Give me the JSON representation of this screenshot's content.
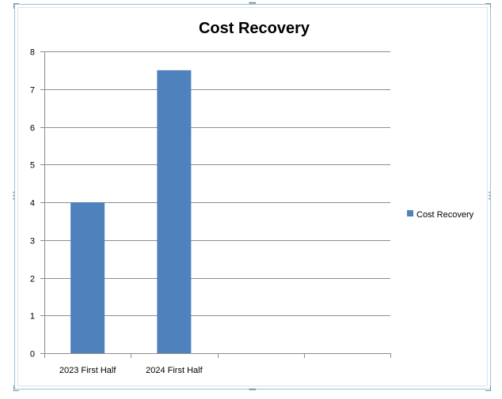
{
  "chart_data": {
    "type": "bar",
    "title": "Cost Recovery",
    "categories": [
      "2023 First Half",
      "2024 First Half",
      "",
      ""
    ],
    "series": [
      {
        "name": "Cost Recovery",
        "values": [
          4,
          7.5,
          null,
          null
        ],
        "color": "#4f81bd"
      }
    ],
    "xlabel": "",
    "ylabel": "",
    "ylim": [
      0,
      8
    ],
    "yticks": [
      0,
      1,
      2,
      3,
      4,
      5,
      6,
      7,
      8
    ],
    "grid": true,
    "legend": "right"
  }
}
